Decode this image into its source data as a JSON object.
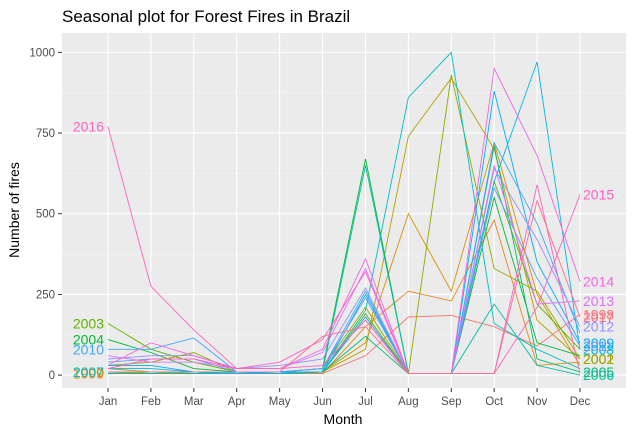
{
  "chart_data": {
    "type": "line",
    "title": "Seasonal plot for Forest Fires in Brazil",
    "xlabel": "Month",
    "ylabel": "Number of fires",
    "categories": [
      "Jan",
      "Feb",
      "Mar",
      "Apr",
      "May",
      "Jun",
      "Jul",
      "Aug",
      "Sep",
      "Oct",
      "Nov",
      "Dec"
    ],
    "yticks": [
      0,
      250,
      500,
      750,
      1000
    ],
    "ylim": [
      -40,
      1060
    ],
    "grid": true,
    "legend": "none",
    "series": [
      {
        "name": "1998",
        "color": "#F8766D",
        "values": [
          null,
          null,
          null,
          null,
          10,
          5,
          60,
          180,
          185,
          150,
          90,
          188
        ],
        "label_side": "right"
      },
      {
        "name": "1999",
        "color": "#E7861B",
        "values": [
          5,
          10,
          5,
          5,
          5,
          5,
          150,
          260,
          230,
          480,
          30,
          40
        ],
        "label_side": "left"
      },
      {
        "name": "2000",
        "color": "#D39200",
        "values": [
          10,
          5,
          10,
          5,
          5,
          10,
          100,
          500,
          260,
          720,
          250,
          30
        ],
        "label_side": "left"
      },
      {
        "name": "2001",
        "color": "#B79F00",
        "values": [
          20,
          10,
          10,
          5,
          10,
          10,
          80,
          740,
          920,
          700,
          170,
          50
        ],
        "label_side": "right"
      },
      {
        "name": "2002",
        "color": "#93AA00",
        "values": [
          30,
          40,
          70,
          10,
          10,
          20,
          210,
          5,
          930,
          330,
          260,
          50
        ],
        "label_side": "right"
      },
      {
        "name": "2003",
        "color": "#5EB300",
        "values": [
          160,
          80,
          40,
          10,
          10,
          10,
          190,
          5,
          5,
          600,
          220,
          80
        ],
        "label_side": "left"
      },
      {
        "name": "2004",
        "color": "#00BA38",
        "values": [
          110,
          70,
          20,
          10,
          10,
          20,
          670,
          5,
          5,
          550,
          100,
          60
        ],
        "label_side": "left"
      },
      {
        "name": "2005",
        "color": "#00BF74",
        "values": [
          10,
          10,
          10,
          5,
          5,
          10,
          120,
          5,
          5,
          710,
          50,
          10
        ],
        "label_side": "right"
      },
      {
        "name": "2006",
        "color": "#00C19F",
        "values": [
          5,
          5,
          5,
          5,
          5,
          10,
          650,
          5,
          5,
          220,
          30,
          0
        ],
        "label_side": "right"
      },
      {
        "name": "2007",
        "color": "#00BFC4",
        "values": [
          10,
          10,
          10,
          5,
          5,
          10,
          200,
          860,
          1000,
          160,
          80,
          20
        ],
        "label_side": "left"
      },
      {
        "name": "2008",
        "color": "#00B9E3",
        "values": [
          20,
          20,
          10,
          5,
          5,
          10,
          250,
          5,
          5,
          600,
          970,
          80
        ],
        "label_side": "right"
      },
      {
        "name": "2009",
        "color": "#00ADFA",
        "values": [
          30,
          30,
          10,
          5,
          10,
          10,
          180,
          5,
          5,
          880,
          350,
          100
        ],
        "label_side": "right"
      },
      {
        "name": "2010",
        "color": "#3FA6FF",
        "values": [
          80,
          80,
          115,
          10,
          10,
          20,
          260,
          5,
          5,
          720,
          470,
          130
        ],
        "label_side": "left"
      },
      {
        "name": "2011",
        "color": "#619CFF",
        "values": [
          40,
          50,
          50,
          10,
          10,
          20,
          240,
          5,
          5,
          580,
          300,
          90
        ],
        "label_side": "right"
      },
      {
        "name": "2012",
        "color": "#9590FF",
        "values": [
          50,
          60,
          60,
          20,
          30,
          50,
          270,
          5,
          5,
          640,
          420,
          150
        ],
        "label_side": "right"
      },
      {
        "name": "2013",
        "color": "#DB72FB",
        "values": [
          60,
          40,
          40,
          20,
          20,
          70,
          330,
          5,
          5,
          650,
          220,
          230
        ],
        "label_side": "right"
      },
      {
        "name": "2014",
        "color": "#F564E3",
        "values": [
          30,
          100,
          60,
          20,
          20,
          80,
          360,
          5,
          5,
          950,
          680,
          290
        ],
        "label_side": "right"
      },
      {
        "name": "2015",
        "color": "#FF61C3",
        "values": [
          20,
          50,
          50,
          20,
          40,
          110,
          320,
          5,
          5,
          5,
          210,
          560
        ],
        "label_side": "right"
      },
      {
        "name": "2016",
        "color": "#FF62BC",
        "values": [
          770,
          275,
          140,
          20,
          20,
          30,
          170,
          5,
          5,
          5,
          590,
          5
        ],
        "label_side": "left"
      },
      {
        "name": "2017",
        "color": "#FF6C91",
        "values": [
          10,
          10,
          10,
          10,
          10,
          120,
          150,
          5,
          5,
          5,
          540,
          180
        ],
        "label_side": "right"
      }
    ]
  }
}
